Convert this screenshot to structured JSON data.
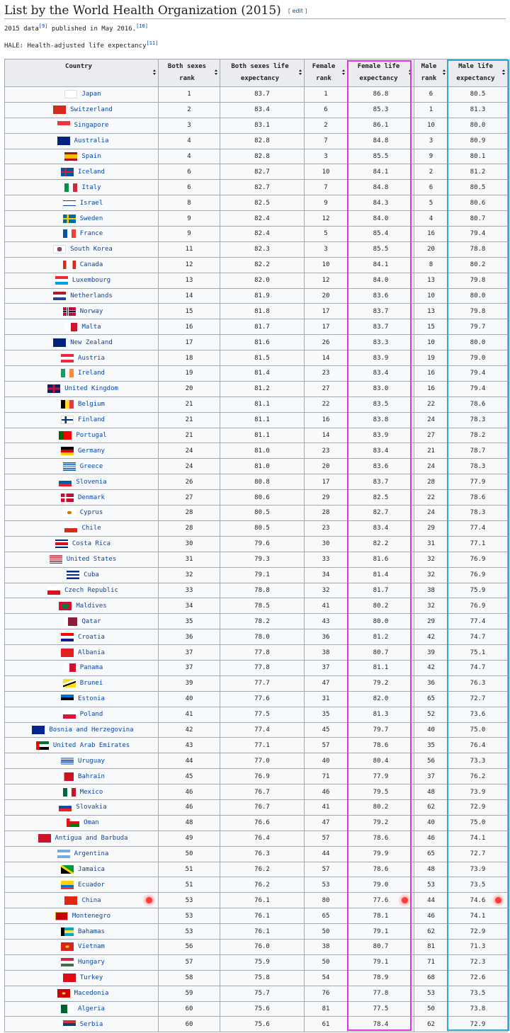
{
  "section": {
    "heading": "List by the World Health Organization (2015)",
    "edit_open": "[ ",
    "edit_label": "edit",
    "edit_close": " ]",
    "note1_text": "2015 data",
    "note1_ref1": "[9]",
    "note1_mid": " published in May 2016.",
    "note1_ref2": "[10]",
    "note2_text": "HALE: Health-adjusted life expectancy",
    "note2_ref": "[11]"
  },
  "table": {
    "columns": [
      "Country",
      "Both sexes rank",
      "Both sexes life expectancy",
      "Female rank",
      "Female life expectancy",
      "Male rank",
      "Male life expectancy"
    ],
    "rows": [
      {
        "country": "Japan",
        "flag": "japan-flag",
        "cells": [
          "1",
          "83.7",
          "1",
          "86.8",
          "6",
          "80.5"
        ]
      },
      {
        "country": "Switzerland",
        "flag": "switzerland-flag",
        "cells": [
          "2",
          "83.4",
          "6",
          "85.3",
          "1",
          "81.3"
        ]
      },
      {
        "country": "Singapore",
        "flag": "singapore-flag",
        "cells": [
          "3",
          "83.1",
          "2",
          "86.1",
          "10",
          "80.0"
        ]
      },
      {
        "country": "Australia",
        "flag": "australia-flag",
        "cells": [
          "4",
          "82.8",
          "7",
          "84.8",
          "3",
          "80.9"
        ]
      },
      {
        "country": "Spain",
        "flag": "spain-flag",
        "cells": [
          "4",
          "82.8",
          "3",
          "85.5",
          "9",
          "80.1"
        ]
      },
      {
        "country": "Iceland",
        "flag": "iceland-flag",
        "cells": [
          "6",
          "82.7",
          "10",
          "84.1",
          "2",
          "81.2"
        ]
      },
      {
        "country": "Italy",
        "flag": "italy-flag",
        "cells": [
          "6",
          "82.7",
          "7",
          "84.8",
          "6",
          "80.5"
        ]
      },
      {
        "country": "Israel",
        "flag": "israel-flag",
        "cells": [
          "8",
          "82.5",
          "9",
          "84.3",
          "5",
          "80.6"
        ]
      },
      {
        "country": "Sweden",
        "flag": "sweden-flag",
        "cells": [
          "9",
          "82.4",
          "12",
          "84.0",
          "4",
          "80.7"
        ]
      },
      {
        "country": "France",
        "flag": "france-flag",
        "cells": [
          "9",
          "82.4",
          "5",
          "85.4",
          "16",
          "79.4"
        ]
      },
      {
        "country": "South Korea",
        "flag": "south-korea-flag",
        "cells": [
          "11",
          "82.3",
          "3",
          "85.5",
          "20",
          "78.8"
        ]
      },
      {
        "country": "Canada",
        "flag": "canada-flag",
        "cells": [
          "12",
          "82.2",
          "10",
          "84.1",
          "8",
          "80.2"
        ]
      },
      {
        "country": "Luxembourg",
        "flag": "luxembourg-flag",
        "cells": [
          "13",
          "82.0",
          "12",
          "84.0",
          "13",
          "79.8"
        ]
      },
      {
        "country": "Netherlands",
        "flag": "netherlands-flag",
        "cells": [
          "14",
          "81.9",
          "20",
          "83.6",
          "10",
          "80.0"
        ]
      },
      {
        "country": "Norway",
        "flag": "norway-flag",
        "cells": [
          "15",
          "81.8",
          "17",
          "83.7",
          "13",
          "79.8"
        ]
      },
      {
        "country": "Malta",
        "flag": "malta-flag",
        "cells": [
          "16",
          "81.7",
          "17",
          "83.7",
          "15",
          "79.7"
        ]
      },
      {
        "country": "New Zealand",
        "flag": "new-zealand-flag",
        "cells": [
          "17",
          "81.6",
          "26",
          "83.3",
          "10",
          "80.0"
        ]
      },
      {
        "country": "Austria",
        "flag": "austria-flag",
        "cells": [
          "18",
          "81.5",
          "14",
          "83.9",
          "19",
          "79.0"
        ]
      },
      {
        "country": "Ireland",
        "flag": "ireland-flag",
        "cells": [
          "19",
          "81.4",
          "23",
          "83.4",
          "16",
          "79.4"
        ]
      },
      {
        "country": "United Kingdom",
        "flag": "united-kingdom-flag",
        "cells": [
          "20",
          "81.2",
          "27",
          "83.0",
          "16",
          "79.4"
        ]
      },
      {
        "country": "Belgium",
        "flag": "belgium-flag",
        "cells": [
          "21",
          "81.1",
          "22",
          "83.5",
          "22",
          "78.6"
        ]
      },
      {
        "country": "Finland",
        "flag": "finland-flag",
        "cells": [
          "21",
          "81.1",
          "16",
          "83.8",
          "24",
          "78.3"
        ]
      },
      {
        "country": "Portugal",
        "flag": "portugal-flag",
        "cells": [
          "21",
          "81.1",
          "14",
          "83.9",
          "27",
          "78.2"
        ]
      },
      {
        "country": "Germany",
        "flag": "germany-flag",
        "cells": [
          "24",
          "81.0",
          "23",
          "83.4",
          "21",
          "78.7"
        ]
      },
      {
        "country": "Greece",
        "flag": "greece-flag",
        "cells": [
          "24",
          "81.0",
          "20",
          "83.6",
          "24",
          "78.3"
        ]
      },
      {
        "country": "Slovenia",
        "flag": "slovenia-flag",
        "cells": [
          "26",
          "80.8",
          "17",
          "83.7",
          "28",
          "77.9"
        ]
      },
      {
        "country": "Denmark",
        "flag": "denmark-flag",
        "cells": [
          "27",
          "80.6",
          "29",
          "82.5",
          "22",
          "78.6"
        ]
      },
      {
        "country": "Cyprus",
        "flag": "cyprus-flag",
        "cells": [
          "28",
          "80.5",
          "28",
          "82.7",
          "24",
          "78.3"
        ]
      },
      {
        "country": "Chile",
        "flag": "chile-flag",
        "cells": [
          "28",
          "80.5",
          "23",
          "83.4",
          "29",
          "77.4"
        ]
      },
      {
        "country": "Costa Rica",
        "flag": "costa-rica-flag",
        "cells": [
          "30",
          "79.6",
          "30",
          "82.2",
          "31",
          "77.1"
        ]
      },
      {
        "country": "United States",
        "flag": "united-states-flag",
        "cells": [
          "31",
          "79.3",
          "33",
          "81.6",
          "32",
          "76.9"
        ]
      },
      {
        "country": "Cuba",
        "flag": "cuba-flag",
        "cells": [
          "32",
          "79.1",
          "34",
          "81.4",
          "32",
          "76.9"
        ]
      },
      {
        "country": "Czech Republic",
        "flag": "czech-republic-flag",
        "cells": [
          "33",
          "78.8",
          "32",
          "81.7",
          "38",
          "75.9"
        ]
      },
      {
        "country": "Maldives",
        "flag": "maldives-flag",
        "cells": [
          "34",
          "78.5",
          "41",
          "80.2",
          "32",
          "76.9"
        ]
      },
      {
        "country": "Qatar",
        "flag": "qatar-flag",
        "cells": [
          "35",
          "78.2",
          "43",
          "80.0",
          "29",
          "77.4"
        ]
      },
      {
        "country": "Croatia",
        "flag": "croatia-flag",
        "cells": [
          "36",
          "78.0",
          "36",
          "81.2",
          "42",
          "74.7"
        ]
      },
      {
        "country": "Albania",
        "flag": "albania-flag",
        "cells": [
          "37",
          "77.8",
          "38",
          "80.7",
          "39",
          "75.1"
        ]
      },
      {
        "country": "Panama",
        "flag": "panama-flag",
        "cells": [
          "37",
          "77.8",
          "37",
          "81.1",
          "42",
          "74.7"
        ]
      },
      {
        "country": "Brunei",
        "flag": "brunei-flag",
        "cells": [
          "39",
          "77.7",
          "47",
          "79.2",
          "36",
          "76.3"
        ]
      },
      {
        "country": "Estonia",
        "flag": "estonia-flag",
        "cells": [
          "40",
          "77.6",
          "31",
          "82.0",
          "65",
          "72.7"
        ]
      },
      {
        "country": "Poland",
        "flag": "poland-flag",
        "cells": [
          "41",
          "77.5",
          "35",
          "81.3",
          "52",
          "73.6"
        ]
      },
      {
        "country": "Bosnia and Herzegovina",
        "flag": "bosnia-flag",
        "cells": [
          "42",
          "77.4",
          "45",
          "79.7",
          "40",
          "75.0"
        ]
      },
      {
        "country": "United Arab Emirates",
        "flag": "uae-flag",
        "cells": [
          "43",
          "77.1",
          "57",
          "78.6",
          "35",
          "76.4"
        ]
      },
      {
        "country": "Uruguay",
        "flag": "uruguay-flag",
        "cells": [
          "44",
          "77.0",
          "40",
          "80.4",
          "56",
          "73.3"
        ]
      },
      {
        "country": "Bahrain",
        "flag": "bahrain-flag",
        "cells": [
          "45",
          "76.9",
          "71",
          "77.9",
          "37",
          "76.2"
        ]
      },
      {
        "country": "Mexico",
        "flag": "mexico-flag",
        "cells": [
          "46",
          "76.7",
          "46",
          "79.5",
          "48",
          "73.9"
        ]
      },
      {
        "country": "Slovakia",
        "flag": "slovakia-flag",
        "cells": [
          "46",
          "76.7",
          "41",
          "80.2",
          "62",
          "72.9"
        ]
      },
      {
        "country": "Oman",
        "flag": "oman-flag",
        "cells": [
          "48",
          "76.6",
          "47",
          "79.2",
          "40",
          "75.0"
        ]
      },
      {
        "country": "Antigua and Barbuda",
        "flag": "antigua-flag",
        "cells": [
          "49",
          "76.4",
          "57",
          "78.6",
          "46",
          "74.1"
        ]
      },
      {
        "country": "Argentina",
        "flag": "argentina-flag",
        "cells": [
          "50",
          "76.3",
          "44",
          "79.9",
          "65",
          "72.7"
        ]
      },
      {
        "country": "Jamaica",
        "flag": "jamaica-flag",
        "cells": [
          "51",
          "76.2",
          "57",
          "78.6",
          "48",
          "73.9"
        ]
      },
      {
        "country": "Ecuador",
        "flag": "ecuador-flag",
        "cells": [
          "51",
          "76.2",
          "53",
          "79.0",
          "53",
          "73.5"
        ]
      },
      {
        "country": "China",
        "flag": "china-flag",
        "cells": [
          "53",
          "76.1",
          "80",
          "77.6",
          "44",
          "74.6"
        ],
        "marked": true
      },
      {
        "country": "Montenegro",
        "flag": "montenegro-flag",
        "cells": [
          "53",
          "76.1",
          "65",
          "78.1",
          "46",
          "74.1"
        ]
      },
      {
        "country": "Bahamas",
        "flag": "bahamas-flag",
        "cells": [
          "53",
          "76.1",
          "50",
          "79.1",
          "62",
          "72.9"
        ]
      },
      {
        "country": "Vietnam",
        "flag": "vietnam-flag",
        "cells": [
          "56",
          "76.0",
          "38",
          "80.7",
          "81",
          "71.3"
        ]
      },
      {
        "country": "Hungary",
        "flag": "hungary-flag",
        "cells": [
          "57",
          "75.9",
          "50",
          "79.1",
          "71",
          "72.3"
        ]
      },
      {
        "country": "Turkey",
        "flag": "turkey-flag",
        "cells": [
          "58",
          "75.8",
          "54",
          "78.9",
          "68",
          "72.6"
        ]
      },
      {
        "country": "Macedonia",
        "flag": "macedonia-flag",
        "cells": [
          "59",
          "75.7",
          "76",
          "77.8",
          "53",
          "73.5"
        ]
      },
      {
        "country": "Algeria",
        "flag": "algeria-flag",
        "cells": [
          "60",
          "75.6",
          "81",
          "77.5",
          "50",
          "73.8"
        ]
      },
      {
        "country": "Serbia",
        "flag": "serbia-flag",
        "cells": [
          "60",
          "75.6",
          "61",
          "78.4",
          "62",
          "72.9"
        ]
      }
    ]
  },
  "colors": {
    "link": "#0645ad",
    "header_bg": "#eaecf0",
    "cell_bg": "#f8f9fa",
    "border": "#a2a9b1",
    "female_box": "#e433e6",
    "male_box": "#32a6dc",
    "marker_dot": "#ff3b3b"
  }
}
